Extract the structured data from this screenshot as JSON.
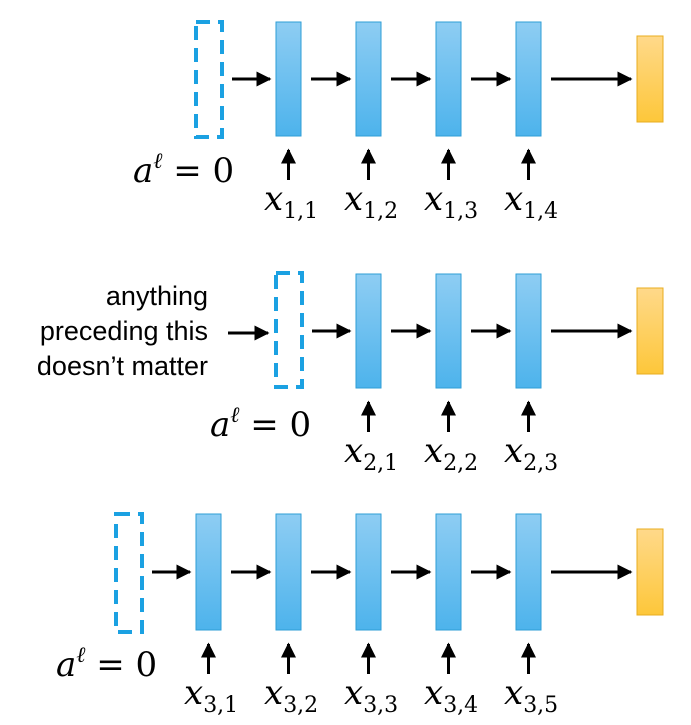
{
  "rows": [
    {
      "init_label": {
        "base": "a",
        "sup": "ℓ",
        "rest": " = 0"
      },
      "inputs": [
        {
          "base": "x",
          "sub": "1,1"
        },
        {
          "base": "x",
          "sub": "1,2"
        },
        {
          "base": "x",
          "sub": "1,3"
        },
        {
          "base": "x",
          "sub": "1,4"
        }
      ]
    },
    {
      "init_label": {
        "base": "a",
        "sup": "ℓ",
        "rest": " = 0"
      },
      "note_lines": [
        "anything",
        "preceding this",
        "doesn’t matter"
      ],
      "inputs": [
        {
          "base": "x",
          "sub": "2,1"
        },
        {
          "base": "x",
          "sub": "2,2"
        },
        {
          "base": "x",
          "sub": "2,3"
        }
      ]
    },
    {
      "init_label": {
        "base": "a",
        "sup": "ℓ",
        "rest": " = 0"
      },
      "inputs": [
        {
          "base": "x",
          "sub": "3,1"
        },
        {
          "base": "x",
          "sub": "3,2"
        },
        {
          "base": "x",
          "sub": "3,3"
        },
        {
          "base": "x",
          "sub": "3,4"
        },
        {
          "base": "x",
          "sub": "3,5"
        }
      ]
    }
  ],
  "colors": {
    "cell_top": "#8ecdf3",
    "cell_bottom": "#4db3ec",
    "cell_stroke": "#2e9ed6",
    "state_dash": "#1ba1e2",
    "output_top": "#ffd98a",
    "output_bottom": "#fdc73a",
    "output_stroke": "#e8ad1f",
    "arrow": "#000000"
  }
}
